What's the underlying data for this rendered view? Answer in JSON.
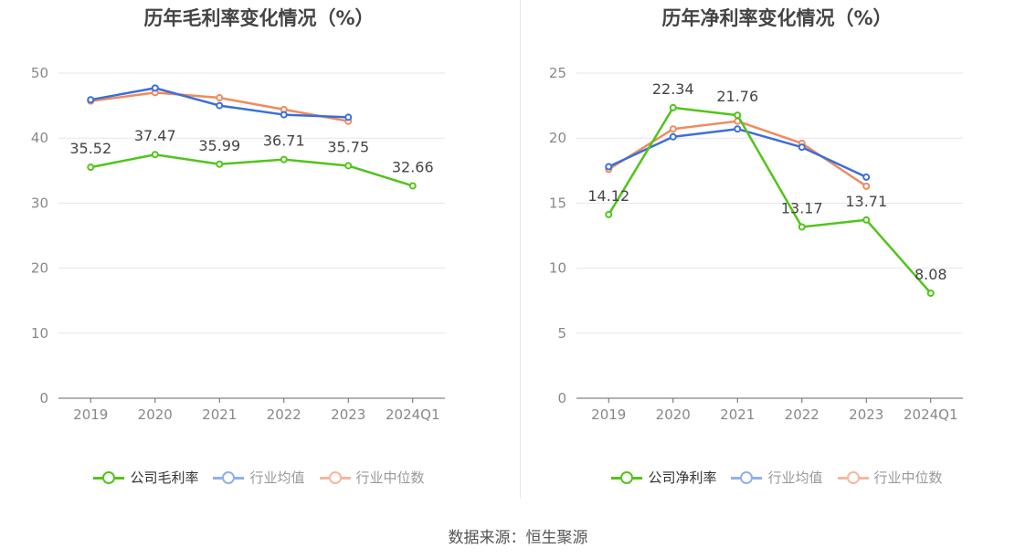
{
  "chart_data": [
    {
      "type": "line",
      "title": "历年毛利率变化情况（%）",
      "categories": [
        "2019",
        "2020",
        "2021",
        "2022",
        "2023",
        "2024Q1"
      ],
      "ylim": [
        0,
        50
      ],
      "yticks": [
        "0",
        "10",
        "20",
        "30",
        "40",
        "50"
      ],
      "grid": true,
      "legend_position": "bottom",
      "series": [
        {
          "name": "公司毛利率",
          "color": "#52c41a",
          "values": [
            35.52,
            37.47,
            35.99,
            36.71,
            35.75,
            32.66
          ],
          "labels": [
            "35.52",
            "37.47",
            "35.99",
            "36.71",
            "35.75",
            "32.66"
          ]
        },
        {
          "name": "行业均值",
          "color": "#3a6fd8",
          "legend_color": "#8fb0ec",
          "values": [
            45.9,
            47.7,
            45.0,
            43.6,
            43.2,
            null
          ]
        },
        {
          "name": "行业中位数",
          "color": "#f08a5d",
          "legend_color": "#f6b79e",
          "values": [
            45.7,
            47.0,
            46.2,
            44.4,
            42.6,
            null
          ]
        }
      ]
    },
    {
      "type": "line",
      "title": "历年净利率变化情况（%）",
      "categories": [
        "2019",
        "2020",
        "2021",
        "2022",
        "2023",
        "2024Q1"
      ],
      "ylim": [
        0,
        25
      ],
      "yticks": [
        "0",
        "5",
        "10",
        "15",
        "20",
        "25"
      ],
      "grid": true,
      "legend_position": "bottom",
      "series": [
        {
          "name": "公司净利率",
          "color": "#52c41a",
          "values": [
            14.12,
            22.34,
            21.76,
            13.17,
            13.71,
            8.08
          ],
          "labels": [
            "14.12",
            "22.34",
            "21.76",
            "13.17",
            "13.71",
            "8.08"
          ]
        },
        {
          "name": "行业均值",
          "color": "#3a6fd8",
          "legend_color": "#8fb0ec",
          "values": [
            17.8,
            20.1,
            20.7,
            19.3,
            17.0,
            null
          ]
        },
        {
          "name": "行业中位数",
          "color": "#f08a5d",
          "legend_color": "#f6b79e",
          "values": [
            17.6,
            20.7,
            21.3,
            19.6,
            16.3,
            null
          ]
        }
      ]
    }
  ],
  "source": "数据来源：恒生聚源"
}
